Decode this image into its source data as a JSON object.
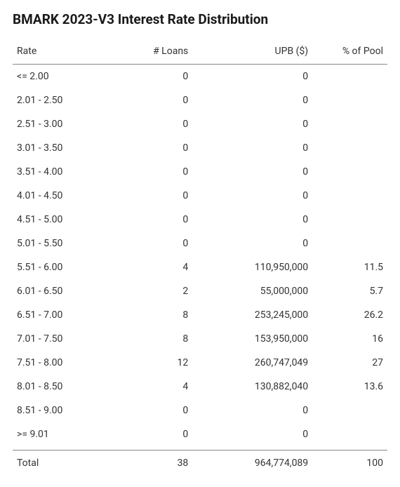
{
  "title": "BMARK 2023-V3 Interest Rate Distribution",
  "columns": [
    "Rate",
    "# Loans",
    "UPB ($)",
    "% of Pool"
  ],
  "rows": [
    {
      "rate": "<= 2.00",
      "loans": "0",
      "upb": "0",
      "pct": ""
    },
    {
      "rate": "2.01 - 2.50",
      "loans": "0",
      "upb": "0",
      "pct": ""
    },
    {
      "rate": "2.51 - 3.00",
      "loans": "0",
      "upb": "0",
      "pct": ""
    },
    {
      "rate": "3.01 - 3.50",
      "loans": "0",
      "upb": "0",
      "pct": ""
    },
    {
      "rate": "3.51 - 4.00",
      "loans": "0",
      "upb": "0",
      "pct": ""
    },
    {
      "rate": "4.01 - 4.50",
      "loans": "0",
      "upb": "0",
      "pct": ""
    },
    {
      "rate": "4.51 - 5.00",
      "loans": "0",
      "upb": "0",
      "pct": ""
    },
    {
      "rate": "5.01 - 5.50",
      "loans": "0",
      "upb": "0",
      "pct": ""
    },
    {
      "rate": "5.51 - 6.00",
      "loans": "4",
      "upb": "110,950,000",
      "pct": "11.5"
    },
    {
      "rate": "6.01 - 6.50",
      "loans": "2",
      "upb": "55,000,000",
      "pct": "5.7"
    },
    {
      "rate": "6.51 - 7.00",
      "loans": "8",
      "upb": "253,245,000",
      "pct": "26.2"
    },
    {
      "rate": "7.01 - 7.50",
      "loans": "8",
      "upb": "153,950,000",
      "pct": "16"
    },
    {
      "rate": "7.51 - 8.00",
      "loans": "12",
      "upb": "260,747,049",
      "pct": "27"
    },
    {
      "rate": "8.01 - 8.50",
      "loans": "4",
      "upb": "130,882,040",
      "pct": "13.6"
    },
    {
      "rate": "8.51 - 9.00",
      "loans": "0",
      "upb": "0",
      "pct": ""
    },
    {
      "rate": ">= 9.01",
      "loans": "0",
      "upb": "0",
      "pct": ""
    }
  ],
  "total": {
    "label": "Total",
    "loans": "38",
    "upb": "964,774,089",
    "pct": "100"
  }
}
